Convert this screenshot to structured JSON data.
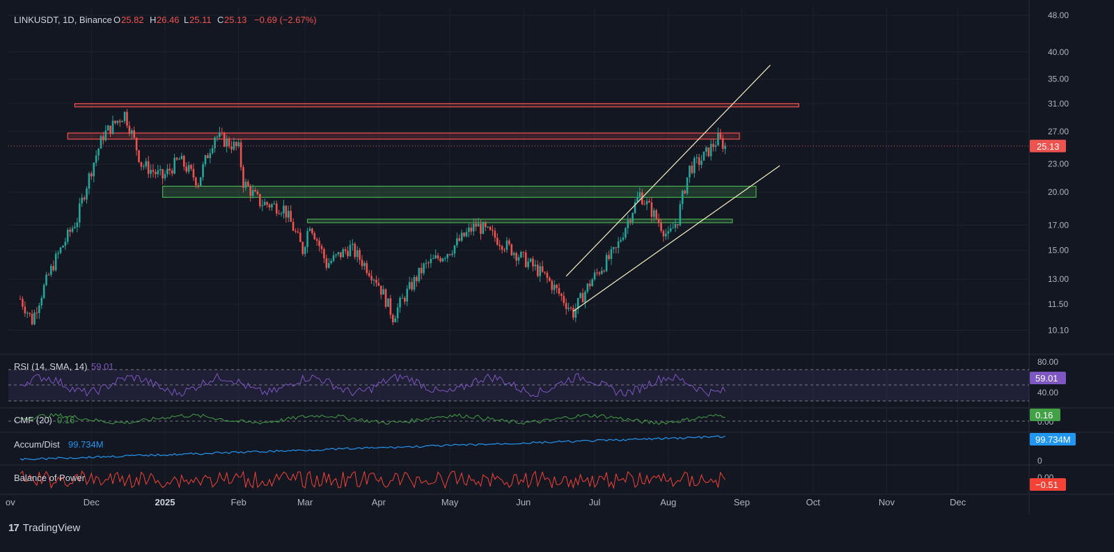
{
  "header": {
    "symbol": "LINKUSDT, 1D, Binance",
    "o_label": "O",
    "o_value": "25.82",
    "h_label": "H",
    "h_value": "26.46",
    "l_label": "L",
    "l_value": "25.11",
    "c_label": "C",
    "c_value": "25.13",
    "change": "−0.69 (−2.67%)"
  },
  "colors": {
    "background": "#131722",
    "up": "#26a69a",
    "down": "#ef5350",
    "resistance_fill": "#ef5350",
    "support_fill": "#4caf50",
    "trendline": "#f5f0c4",
    "rsi": "#7e57c2",
    "cmf": "#43a047",
    "ad": "#2196f3",
    "bop": "#f44336"
  },
  "chart_data": {
    "type": "candlestick",
    "scale": "log",
    "ylim": [
      9.0,
      50.0
    ],
    "price_ticks": [
      "48.00",
      "40.00",
      "35.00",
      "31.00",
      "27.00",
      "23.00",
      "20.00",
      "17.00",
      "15.00",
      "13.00",
      "11.50",
      "10.10"
    ],
    "x_tick_labels": [
      "ov",
      "Dec",
      "2025",
      "Feb",
      "Mar",
      "Apr",
      "May",
      "Jun",
      "Jul",
      "Aug",
      "Sep",
      "Oct",
      "Nov",
      "Dec"
    ],
    "current_price": "25.13",
    "price_path_dates": [
      "2024-11-01",
      "2024-11-06",
      "2024-11-15",
      "2024-11-25",
      "2024-12-06",
      "2024-12-15",
      "2024-12-22",
      "2024-12-31",
      "2025-01-07",
      "2025-01-15",
      "2025-01-22",
      "2025-02-01",
      "2025-02-03",
      "2025-02-10",
      "2025-02-20",
      "2025-02-28",
      "2025-03-03",
      "2025-03-10",
      "2025-03-20",
      "2025-03-31",
      "2025-04-07",
      "2025-04-20",
      "2025-05-01",
      "2025-05-12",
      "2025-05-20",
      "2025-05-31",
      "2025-06-10",
      "2025-06-22",
      "2025-06-30",
      "2025-07-10",
      "2025-07-20",
      "2025-07-25",
      "2025-08-01",
      "2025-08-05",
      "2025-08-10",
      "2025-08-15",
      "2025-08-22",
      "2025-08-25"
    ],
    "price_path": [
      11.8,
      10.6,
      14.0,
      17.5,
      26.5,
      29.5,
      23.0,
      21.5,
      23.5,
      21.0,
      26.5,
      24.8,
      21.0,
      19.0,
      18.5,
      15.0,
      17.2,
      14.0,
      15.2,
      13.0,
      10.8,
      13.8,
      15.0,
      17.0,
      16.0,
      14.5,
      13.2,
      11.0,
      13.0,
      15.0,
      19.8,
      18.2,
      16.0,
      17.5,
      22.5,
      23.5,
      26.0,
      25.13
    ],
    "resistance_zones": [
      {
        "start": "2024-11-24",
        "end": "2025-09-25",
        "low": 30.5,
        "high": 31.0
      },
      {
        "start": "2024-11-21",
        "end": "2025-08-31",
        "low": 26.0,
        "high": 26.8
      }
    ],
    "support_zones": [
      {
        "start": "2024-12-31",
        "end": "2025-09-07",
        "low": 19.5,
        "high": 20.6
      },
      {
        "start": "2025-03-02",
        "end": "2025-08-28",
        "low": 17.2,
        "high": 17.5
      }
    ],
    "trendlines": [
      {
        "x1": "2025-06-19",
        "y1": 13.2,
        "x2": "2025-09-13",
        "y2": 37.5
      },
      {
        "x1": "2025-06-22",
        "y1": 11.1,
        "x2": "2025-09-17",
        "y2": 22.8
      }
    ],
    "indicators": {
      "rsi": {
        "label": "RSI (14, SMA, 14)",
        "value": "59.01",
        "ticks": [
          "80.00",
          "40.00"
        ]
      },
      "cmf": {
        "label": "CMF (20)",
        "value": "0.16",
        "ticks": [
          "0.00"
        ]
      },
      "ad": {
        "label": "Accum/Dist",
        "value": "99.734M",
        "ticks": [
          "0"
        ]
      },
      "bop": {
        "label": "Balance of Power",
        "value": "−0.51",
        "ticks": [
          "0.00"
        ]
      }
    }
  },
  "footer": {
    "brand": "TradingView"
  }
}
